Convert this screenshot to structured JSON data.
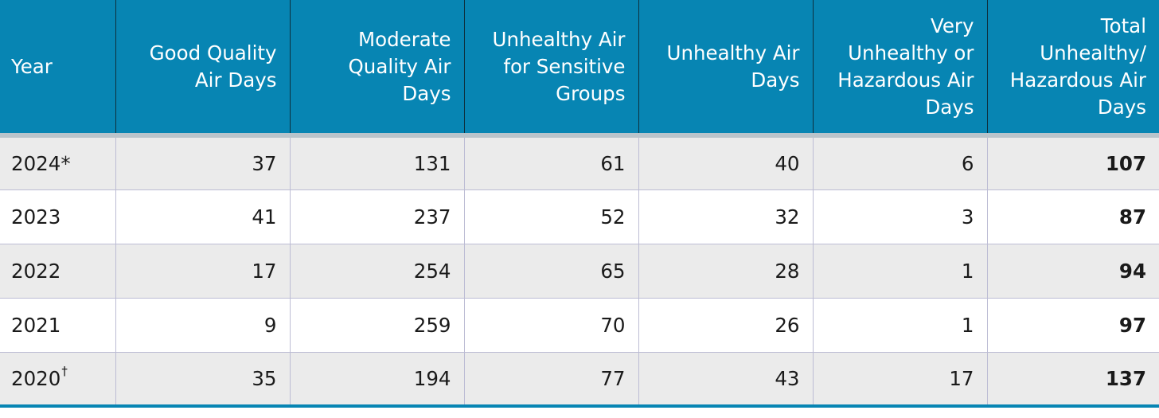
{
  "table": {
    "headers": [
      [
        "Year"
      ],
      [
        "Good Quality",
        "Air Days"
      ],
      [
        "Moderate",
        "Quality Air",
        "Days"
      ],
      [
        "Unhealthy Air",
        "for Sensitive",
        "Groups"
      ],
      [
        "Unhealthy Air",
        "Days"
      ],
      [
        "Very",
        "Unhealthy or",
        "Hazardous Air",
        "Days"
      ],
      [
        "Total",
        "Unhealthy/",
        "Hazardous Air",
        "Days"
      ]
    ],
    "rows": [
      {
        "year": "2024*",
        "mark": "",
        "good": "37",
        "moderate": "131",
        "sensitive": "61",
        "unhealthy": "40",
        "very": "6",
        "total": "107"
      },
      {
        "year": "2023",
        "mark": "",
        "good": "41",
        "moderate": "237",
        "sensitive": "52",
        "unhealthy": "32",
        "very": "3",
        "total": "87"
      },
      {
        "year": "2022",
        "mark": "",
        "good": "17",
        "moderate": "254",
        "sensitive": "65",
        "unhealthy": "28",
        "very": "1",
        "total": "94"
      },
      {
        "year": "2021",
        "mark": "",
        "good": "9",
        "moderate": "259",
        "sensitive": "70",
        "unhealthy": "26",
        "very": "1",
        "total": "97"
      },
      {
        "year": "2020",
        "mark": "†",
        "good": "35",
        "moderate": "194",
        "sensitive": "77",
        "unhealthy": "43",
        "very": "17",
        "total": "137"
      }
    ]
  },
  "colors": {
    "header_bg": "#0785b3",
    "header_text": "#ffffff",
    "row_alt_bg": "#ebebeb",
    "row_bg": "#ffffff"
  }
}
